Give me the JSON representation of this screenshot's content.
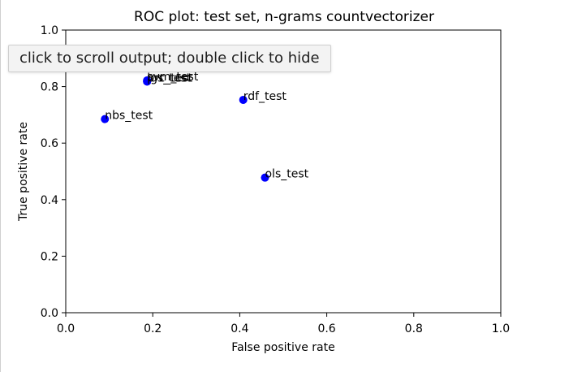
{
  "output": {
    "tooltip_text": "click to scroll output; double click to hide"
  },
  "chart_data": {
    "type": "scatter",
    "title": "ROC plot: test set, n-grams countvectorizer",
    "xlabel": "False positive rate",
    "ylabel": "True positive rate",
    "xlim": [
      0.0,
      1.0
    ],
    "ylim": [
      0.0,
      1.0
    ],
    "xticks": [
      "0.0",
      "0.2",
      "0.4",
      "0.6",
      "0.8",
      "1.0"
    ],
    "yticks": [
      "0.0",
      "0.2",
      "0.4",
      "0.6",
      "0.8",
      "1.0"
    ],
    "grid": false,
    "marker_color": "#0000ff",
    "points": [
      {
        "label": "svm_test",
        "x": 0.187,
        "y": 0.822
      },
      {
        "label": "lgs_test",
        "x": 0.187,
        "y": 0.818
      },
      {
        "label": "prc_test",
        "x": 0.187,
        "y": 0.818
      },
      {
        "label": "rdf_test",
        "x": 0.408,
        "y": 0.753
      },
      {
        "label": "nbs_test",
        "x": 0.09,
        "y": 0.685
      },
      {
        "label": "ols_test",
        "x": 0.458,
        "y": 0.478
      }
    ]
  }
}
